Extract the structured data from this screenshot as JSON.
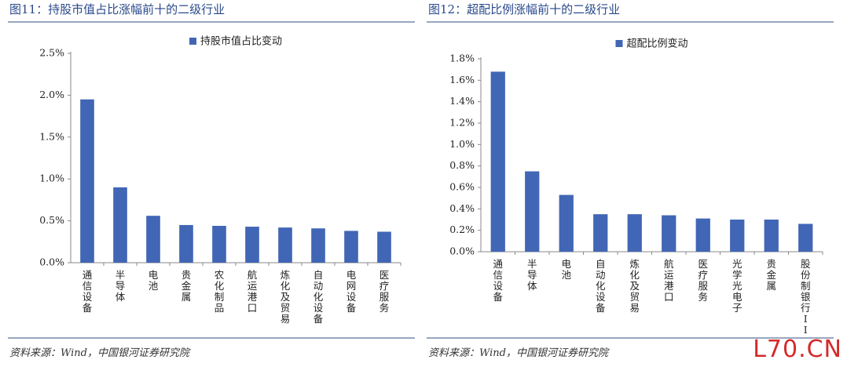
{
  "figures": [
    {
      "title": "图11：持股市值占比涨幅前十的二级行业",
      "source": "资料来源：Wind，中国银河证券研究院",
      "chart_data": {
        "type": "bar",
        "legend": "持股市值占比变动",
        "legend_position": "top-center",
        "grid": false,
        "categories": [
          "通信设备",
          "半导体",
          "电池",
          "贵金属",
          "农化制品",
          "航运港口",
          "炼化及贸易",
          "自动化设备",
          "电网设备",
          "医疗服务"
        ],
        "values": [
          1.95,
          0.9,
          0.56,
          0.45,
          0.44,
          0.43,
          0.42,
          0.41,
          0.38,
          0.37
        ],
        "yticks": [
          "0.0%",
          "0.5%",
          "1.0%",
          "1.5%",
          "2.0%",
          "2.5%"
        ],
        "ylim": [
          0,
          2.5
        ],
        "unit": "%"
      }
    },
    {
      "title": "图12：超配比例涨幅前十的二级行业",
      "source": "资料来源：Wind，中国银河证券研究院",
      "chart_data": {
        "type": "bar",
        "legend": "超配比例变动",
        "legend_position": "top-center",
        "grid": false,
        "categories": [
          "通信设备",
          "半导体",
          "电池",
          "自动化设备",
          "炼化及贸易",
          "航运港口",
          "医疗服务",
          "光学光电子",
          "贵金属",
          "股份制银行II"
        ],
        "values": [
          1.68,
          0.75,
          0.53,
          0.35,
          0.35,
          0.34,
          0.31,
          0.3,
          0.3,
          0.26
        ],
        "yticks": [
          "0.0%",
          "0.2%",
          "0.4%",
          "0.6%",
          "0.8%",
          "1.0%",
          "1.2%",
          "1.4%",
          "1.6%",
          "1.8%"
        ],
        "ylim": [
          0,
          1.8
        ],
        "unit": "%"
      }
    }
  ],
  "watermark": "L70.CN",
  "colors": {
    "bar": "#4166b5",
    "title": "#2a4a8c",
    "rule": "#9aa6bf",
    "axis": "#8a8a8a",
    "watermark": "#d42a2a"
  }
}
